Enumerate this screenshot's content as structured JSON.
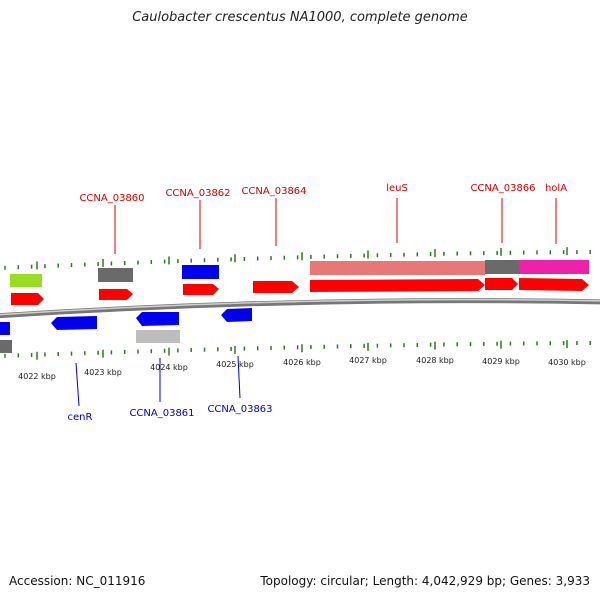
{
  "title": "Caulobacter crescentus NA1000, complete genome",
  "footer": {
    "accession": "Accession: NC_011916",
    "summary": "Topology: circular; Length: 4,042,929 bp; Genes: 3,933"
  },
  "colors": {
    "forward_gene": "#ff0000",
    "reverse_gene": "#0000ee",
    "label_forward": "#d40000",
    "label_reverse": "#0000cc",
    "backbone": "#888888",
    "tick": "#2a7a1a",
    "grey_feature": "#6a6a6a",
    "light_grey_feature": "#bdbdbd",
    "lime_feature": "#99dd22",
    "salmon_feature": "#e87878",
    "magenta_feature": "#ee22aa"
  },
  "axis": {
    "ticks": [
      "4022 kbp",
      "4023 kbp",
      "4024 kbp",
      "4025 kbp",
      "4026 kbp",
      "4027 kbp",
      "4028 kbp",
      "4029 kbp",
      "4030 kbp"
    ]
  },
  "labels": {
    "forward": [
      "CCNA_03860",
      "CCNA_03862",
      "CCNA_03864",
      "leuS",
      "CCNA_03866",
      "holA"
    ],
    "reverse": [
      "cenR",
      "CCNA_03861",
      "CCNA_03863"
    ]
  }
}
